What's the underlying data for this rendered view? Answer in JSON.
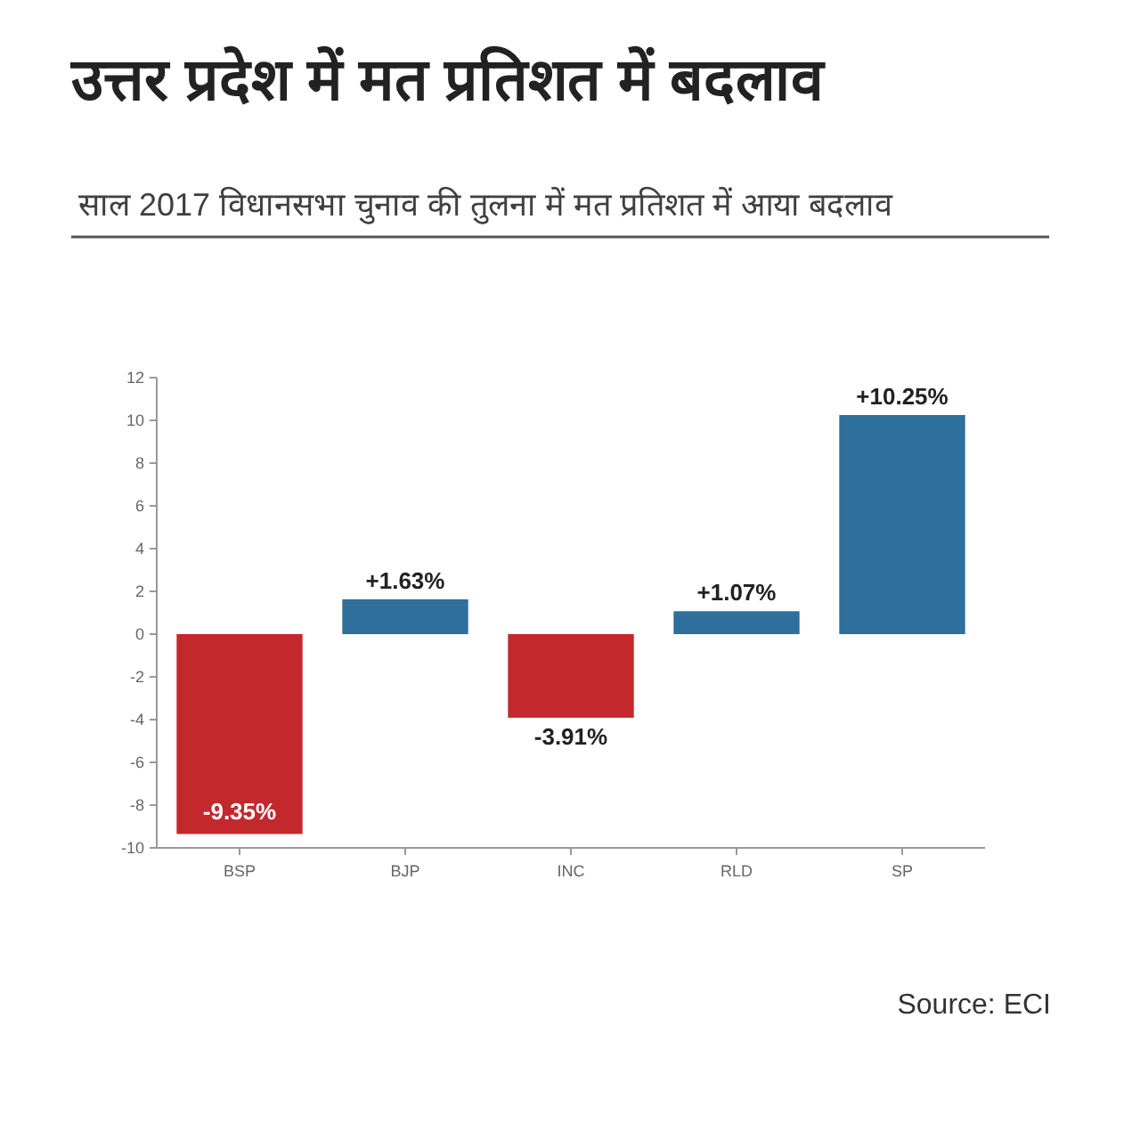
{
  "chart_data": {
    "type": "bar",
    "title": "उत्तर प्रदेश में मत प्रतिशत में बदलाव",
    "subtitle": "साल 2017 विधानसभा चुनाव की तुलना में मत प्रतिशत में आया बदलाव",
    "categories": [
      "BSP",
      "BJP",
      "INC",
      "RLD",
      "SP"
    ],
    "values": [
      -9.35,
      1.63,
      -3.91,
      1.07,
      10.25
    ],
    "colors": [
      "#c3282d",
      "#2e6f9c",
      "#c3282d",
      "#2e6f9c",
      "#2e6f9c"
    ],
    "value_labels": [
      "-9.35%",
      "+1.63%",
      "-3.91%",
      "+1.07%",
      "+10.25%"
    ],
    "ylim": [
      -10,
      12
    ],
    "yticks": [
      -10,
      -8,
      -6,
      -4,
      -2,
      0,
      2,
      4,
      6,
      8,
      10,
      12
    ],
    "annotations": [
      "Source: ECI"
    ]
  }
}
